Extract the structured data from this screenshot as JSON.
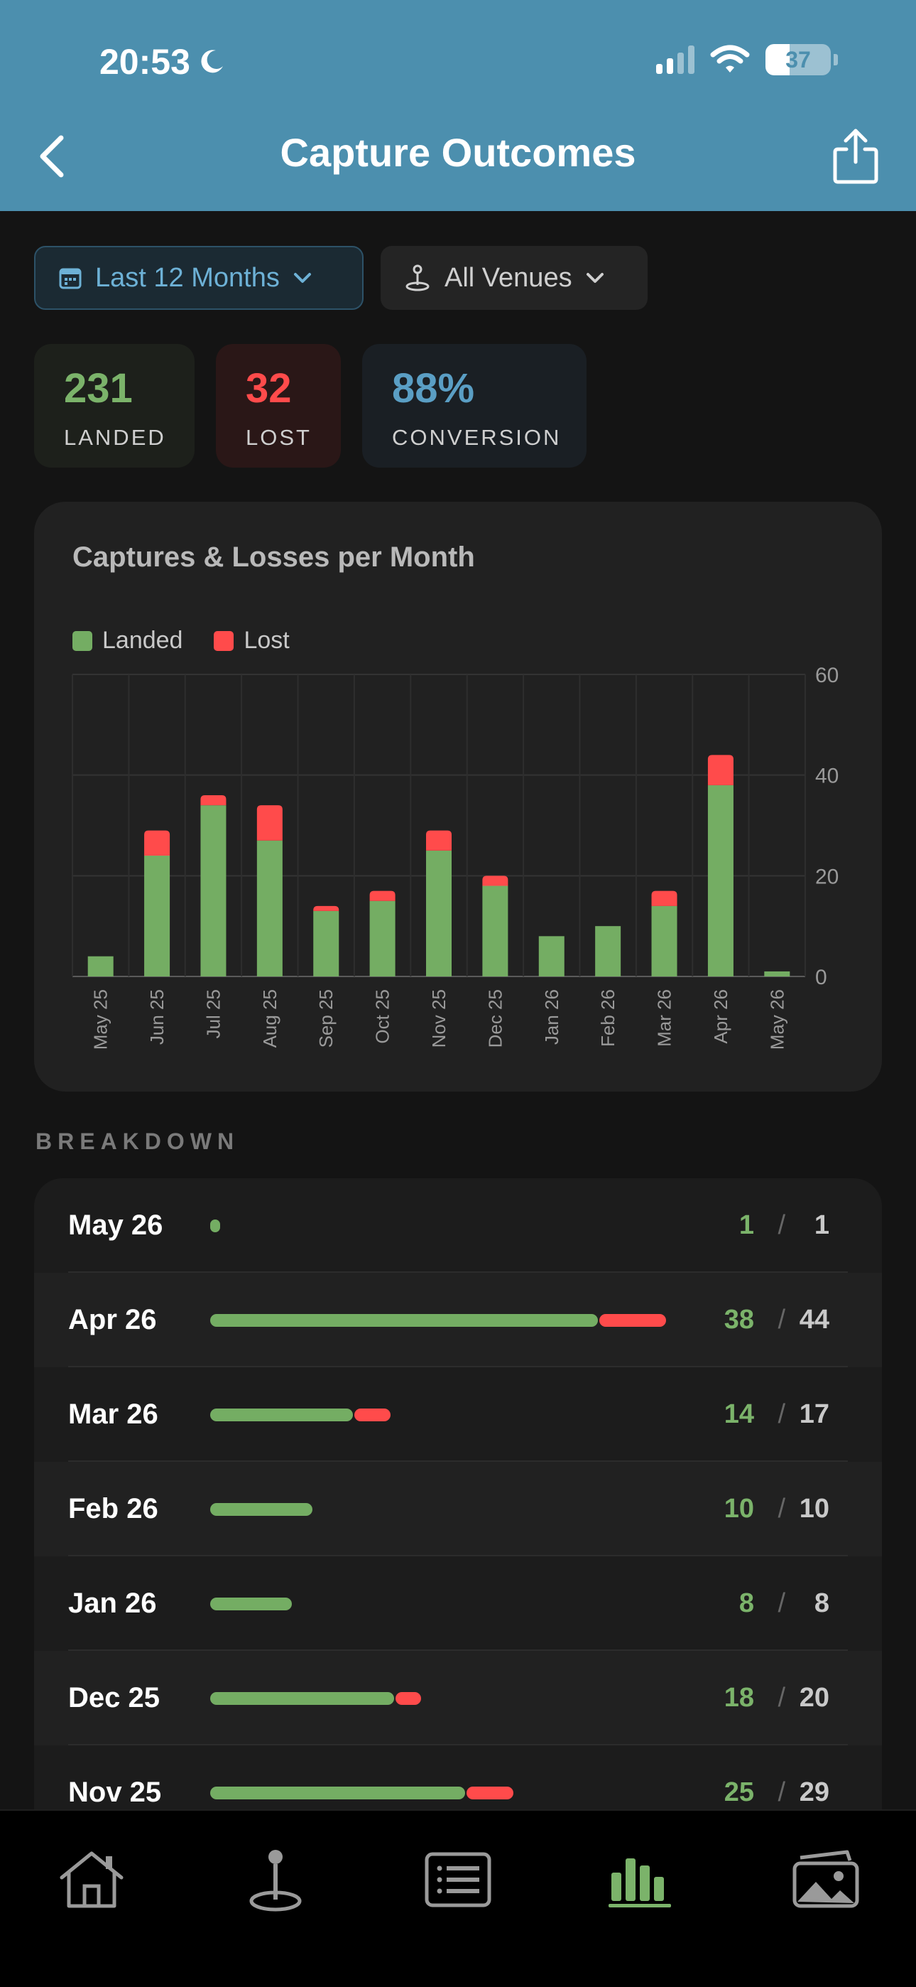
{
  "status_bar": {
    "time": "20:53",
    "battery": "37",
    "battery_level": 0.37
  },
  "nav": {
    "title": "Capture Outcomes"
  },
  "filters": {
    "date_range": "Last 12 Months",
    "venue": "All Venues"
  },
  "stats": [
    {
      "value": "231",
      "label": "LANDED"
    },
    {
      "value": "32",
      "label": "LOST"
    },
    {
      "value": "88%",
      "label": "CONVERSION"
    }
  ],
  "colors": {
    "landed": "#74ad63",
    "lost": "#ff4b4b",
    "accent": "#4c8fae"
  },
  "chart_data": {
    "type": "bar",
    "stacked": true,
    "title": "Captures & Losses per Month",
    "categories": [
      "May 25",
      "Jun 25",
      "Jul 25",
      "Aug 25",
      "Sep 25",
      "Oct 25",
      "Nov 25",
      "Dec 25",
      "Jan 26",
      "Feb 26",
      "Mar 26",
      "Apr 26",
      "May 26"
    ],
    "series": [
      {
        "name": "Landed",
        "values": [
          4,
          24,
          34,
          27,
          13,
          15,
          25,
          18,
          8,
          10,
          14,
          38,
          1
        ]
      },
      {
        "name": "Lost",
        "values": [
          0,
          5,
          2,
          7,
          1,
          2,
          4,
          2,
          0,
          0,
          3,
          6,
          0
        ]
      }
    ],
    "ylim": [
      0,
      60
    ],
    "yticks": [
      0,
      20,
      40,
      60
    ],
    "y_axis_position": "right",
    "grid": true,
    "legend": "top-left"
  },
  "breakdown": {
    "label": "BREAKDOWN",
    "slash": "/",
    "max_total": 44,
    "rows": [
      {
        "month": "May 26",
        "landed": 1,
        "total": 1
      },
      {
        "month": "Apr 26",
        "landed": 38,
        "total": 44
      },
      {
        "month": "Mar 26",
        "landed": 14,
        "total": 17
      },
      {
        "month": "Feb 26",
        "landed": 10,
        "total": 10
      },
      {
        "month": "Jan 26",
        "landed": 8,
        "total": 8
      },
      {
        "month": "Dec 25",
        "landed": 18,
        "total": 20
      },
      {
        "month": "Nov 25",
        "landed": 25,
        "total": 29
      }
    ]
  },
  "tabs": [
    {
      "icon": "home-icon",
      "active": false
    },
    {
      "icon": "venue-pin-icon",
      "active": false
    },
    {
      "icon": "log-list-icon",
      "active": false
    },
    {
      "icon": "stats-chart-icon",
      "active": true
    },
    {
      "icon": "gallery-icon",
      "active": false
    }
  ]
}
